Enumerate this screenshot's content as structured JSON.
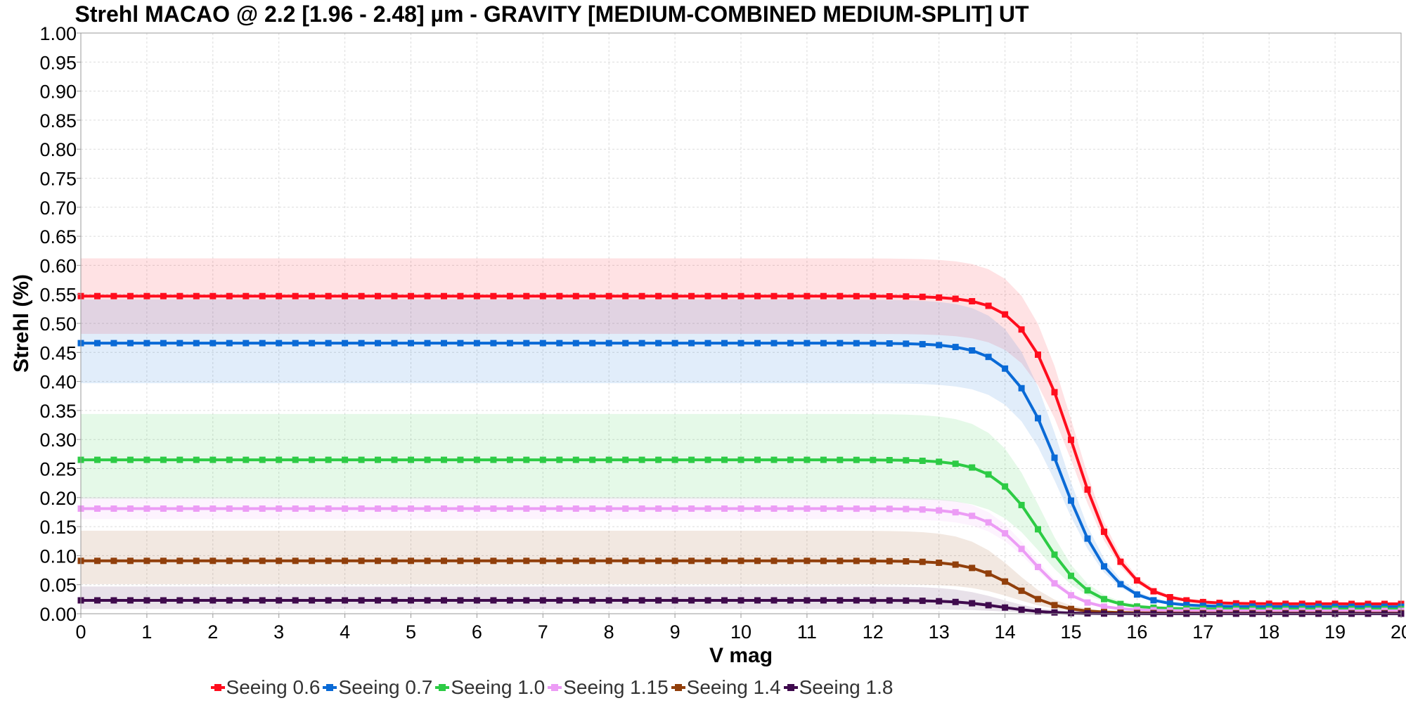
{
  "chart_data": {
    "type": "line",
    "title": "Strehl MACAO @ 2.2 [1.96 - 2.48] µm - GRAVITY [MEDIUM-COMBINED MEDIUM-SPLIT] UT",
    "xlabel": "V mag",
    "ylabel": "Strehl (%)",
    "xlim": [
      0,
      20
    ],
    "ylim": [
      0,
      1
    ],
    "xticks": [
      "0",
      "1",
      "2",
      "3",
      "4",
      "5",
      "6",
      "7",
      "8",
      "9",
      "10",
      "11",
      "12",
      "13",
      "14",
      "15",
      "16",
      "17",
      "18",
      "19",
      "20"
    ],
    "yticks": [
      "0.00",
      "0.05",
      "0.10",
      "0.15",
      "0.20",
      "0.25",
      "0.30",
      "0.35",
      "0.40",
      "0.45",
      "0.50",
      "0.55",
      "0.60",
      "0.65",
      "0.70",
      "0.75",
      "0.80",
      "0.85",
      "0.90",
      "0.95",
      "1.00"
    ],
    "grid": true,
    "legend_position": "bottom",
    "x": [
      0,
      0.25,
      0.5,
      0.75,
      1,
      1.25,
      1.5,
      1.75,
      2,
      2.25,
      2.5,
      2.75,
      3,
      3.25,
      3.5,
      3.75,
      4,
      4.25,
      4.5,
      4.75,
      5,
      5.25,
      5.5,
      5.75,
      6,
      6.25,
      6.5,
      6.75,
      7,
      7.25,
      7.5,
      7.75,
      8,
      8.25,
      8.5,
      8.75,
      9,
      9.25,
      9.5,
      9.75,
      10,
      10.25,
      10.5,
      10.75,
      11,
      11.25,
      11.5,
      11.75,
      12,
      12.25,
      12.5,
      12.75,
      13,
      13.25,
      13.5,
      13.75,
      14,
      14.25,
      14.5,
      14.75,
      15,
      15.25,
      15.5,
      15.75,
      16,
      16.25,
      16.5,
      16.75,
      17,
      17.25,
      17.5,
      17.75,
      18,
      18.25,
      18.5,
      18.75,
      19,
      19.25,
      19.5,
      19.75,
      20
    ],
    "series": [
      {
        "name": "Seeing 0.6",
        "color": "#ff0d1d",
        "plateau": 0.547,
        "floor": 0.017,
        "midpoint": 15.05,
        "width": 0.38,
        "band_plus": 0.063,
        "band_minus": 0.065
      },
      {
        "name": "Seeing 0.7",
        "color": "#0a6ad6",
        "plateau": 0.466,
        "floor": 0.012,
        "midpoint": 14.85,
        "width": 0.38,
        "band_plus": 0.073,
        "band_minus": 0.069
      },
      {
        "name": "Seeing 1.0",
        "color": "#2dcb45",
        "plateau": 0.265,
        "floor": 0.008,
        "midpoint": 14.55,
        "width": 0.36,
        "band_plus": 0.077,
        "band_minus": 0.067
      },
      {
        "name": "Seeing 1.15",
        "color": "#ec9cf5",
        "plateau": 0.181,
        "floor": 0.005,
        "midpoint": 14.4,
        "width": 0.35,
        "band_plus": 0.018,
        "band_minus": 0.018
      },
      {
        "name": "Seeing 1.4",
        "color": "#913f0b",
        "plateau": 0.091,
        "floor": 0.001,
        "midpoint": 14.15,
        "width": 0.35,
        "band_plus": 0.05,
        "band_minus": 0.04
      },
      {
        "name": "Seeing 1.8",
        "color": "#3f0a4d",
        "plateau": 0.023,
        "floor": 0.0,
        "midpoint": 13.95,
        "width": 0.35,
        "band_plus": 0.022,
        "band_minus": 0.015
      }
    ]
  }
}
